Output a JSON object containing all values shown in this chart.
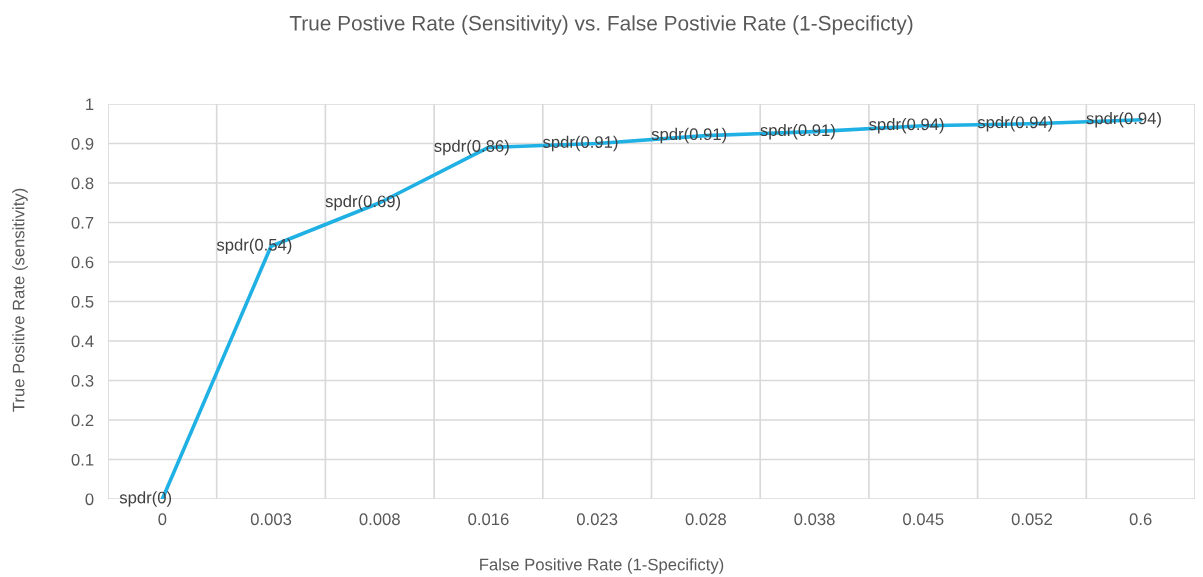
{
  "chart_data": {
    "type": "line",
    "title": "True Postive Rate (Sensitivity) vs. False Postivie Rate (1-Specificty)",
    "xlabel": "False Positive Rate (1-Specificty)",
    "ylabel": "True Positive Rate (sensitivity)",
    "categories": [
      "0",
      "0.003",
      "0.008",
      "0.016",
      "0.023",
      "0.028",
      "0.038",
      "0.045",
      "0.052",
      "0.6"
    ],
    "series": [
      {
        "color": "#1fb0e4",
        "values": [
          0,
          0.64,
          0.75,
          0.89,
          0.9,
          0.92,
          0.93,
          0.945,
          0.95,
          0.96
        ]
      }
    ],
    "ylim": [
      0,
      1
    ],
    "yticks": [
      0,
      0.1,
      0.2,
      0.3,
      0.4,
      0.5,
      0.6,
      0.7,
      0.8,
      0.9,
      1
    ],
    "grid": true,
    "marker": "none",
    "line_style": "solid",
    "legend": false,
    "annotations": [
      {
        "text": "spdr(0)",
        "x": "0",
        "y": 0
      },
      {
        "text": "spdr(0.54)",
        "x": "0.003",
        "y": 0.64
      },
      {
        "text": "spdr(0.69)",
        "x": "0.008",
        "y": 0.75
      },
      {
        "text": "spdr(0.86)",
        "x": "0.016",
        "y": 0.89
      },
      {
        "text": "spdr(0.91)",
        "x": "0.023",
        "y": 0.9
      },
      {
        "text": "spdr(0.91)",
        "x": "0.028",
        "y": 0.92
      },
      {
        "text": "spdr(0.91)",
        "x": "0.038",
        "y": 0.93
      },
      {
        "text": "spdr(0.94)",
        "x": "0.045",
        "y": 0.945
      },
      {
        "text": "spdr(0.94)",
        "x": "0.052",
        "y": 0.95
      },
      {
        "text": "spdr(0.94)",
        "x": "0.6",
        "y": 0.96
      }
    ]
  }
}
